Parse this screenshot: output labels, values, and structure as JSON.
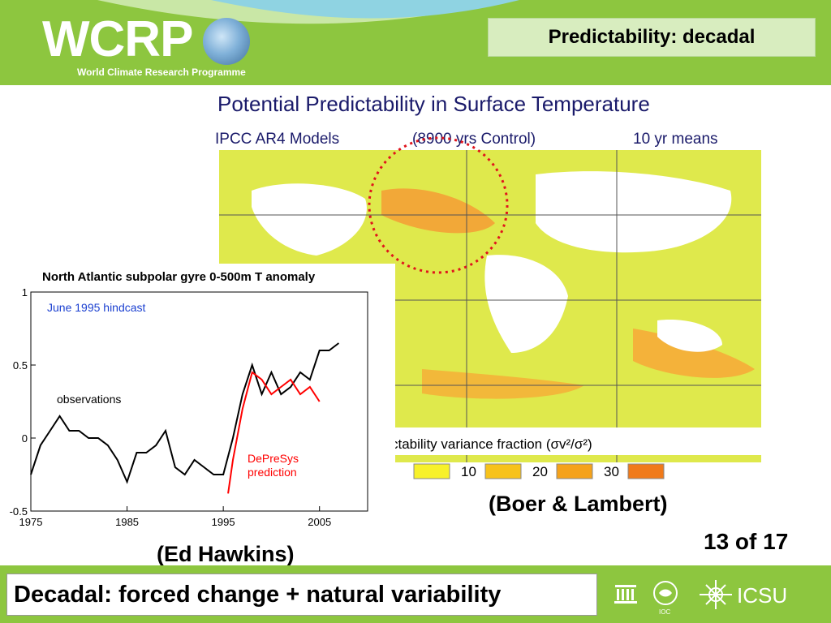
{
  "header": {
    "logo_text": "WCRP",
    "logo_subtitle": "World Climate Research Programme",
    "slide_title": "Predictability: decadal"
  },
  "map": {
    "title": "Potential Predictability in Surface Temperature",
    "subtitle_left": "IPCC AR4 Models",
    "subtitle_mid": "(8900 yrs Control)",
    "subtitle_right": "10 yr means",
    "legend_label": "ctability variance fraction (σv²/σ²)",
    "legend_items": [
      "10",
      "20",
      "30"
    ],
    "legend_colors": [
      "#f7f12a",
      "#f7c21a",
      "#f5a21a",
      "#f07a1a"
    ],
    "credit": "(Boer & Lambert)"
  },
  "chart_data": {
    "type": "line",
    "title": "North Atlantic subpolar gyre 0-500m T anomaly",
    "annotation": "June 1995 hindcast",
    "series": [
      {
        "name": "observations",
        "color": "#000000",
        "x": [
          1975,
          1976,
          1977,
          1978,
          1979,
          1980,
          1981,
          1982,
          1983,
          1984,
          1985,
          1986,
          1987,
          1988,
          1989,
          1990,
          1991,
          1992,
          1993,
          1994,
          1995,
          1996,
          1997,
          1998,
          1999,
          2000,
          2001,
          2002,
          2003,
          2004,
          2005,
          2006,
          2007
        ],
        "y": [
          -0.25,
          -0.05,
          0.05,
          0.15,
          0.05,
          0.05,
          0.0,
          0.0,
          -0.05,
          -0.15,
          -0.3,
          -0.1,
          -0.1,
          -0.05,
          0.05,
          -0.2,
          -0.25,
          -0.15,
          -0.2,
          -0.25,
          -0.25,
          0.0,
          0.3,
          0.5,
          0.3,
          0.45,
          0.3,
          0.35,
          0.45,
          0.4,
          0.6,
          0.6,
          0.65
        ]
      },
      {
        "name": "DePreSys prediction",
        "color": "#ff0000",
        "x": [
          1995.5,
          1996,
          1997,
          1998,
          1999,
          2000,
          2001,
          2002,
          2003,
          2004,
          2005
        ],
        "y": [
          -0.38,
          -0.15,
          0.2,
          0.45,
          0.4,
          0.3,
          0.35,
          0.4,
          0.3,
          0.35,
          0.25
        ]
      }
    ],
    "labels": {
      "observations": "observations",
      "prediction": "DePreSys\nprediction"
    },
    "xlim": [
      1975,
      2010
    ],
    "ylim": [
      -0.5,
      1
    ],
    "xticks": [
      1975,
      1985,
      1995,
      2005
    ],
    "yticks": [
      -0.5,
      0,
      0.5,
      1
    ],
    "ytick_labels": [
      "-0.5",
      "0",
      "0.5",
      "1"
    ],
    "credit": "(Ed Hawkins)"
  },
  "page": {
    "number": "13 of 17"
  },
  "footer": {
    "caption": "Decadal: forced change + natural variability",
    "logos": [
      "unesco-icon",
      "ioc-icon",
      "icsu-icon"
    ],
    "icsu_text": "ICSU"
  }
}
